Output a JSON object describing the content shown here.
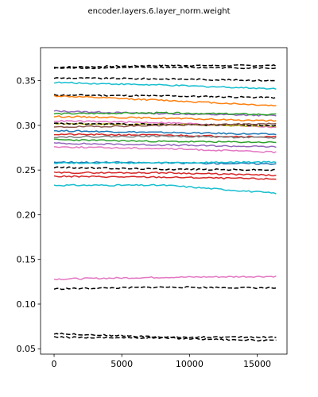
{
  "chart_data": {
    "type": "line",
    "title": "encoder.layers.6.layer_norm.weight",
    "xlabel": "",
    "ylabel": "",
    "xlim": [
      -1000,
      17200
    ],
    "ylim": [
      0.044,
      0.387
    ],
    "x_ticks": [
      0,
      5000,
      10000,
      15000
    ],
    "y_ticks": [
      0.05,
      0.1,
      0.15,
      0.2,
      0.25,
      0.3,
      0.35
    ],
    "x_tick_labels": [
      "0",
      "5000",
      "10000",
      "15000"
    ],
    "y_tick_labels": [
      "0.05",
      "0.10",
      "0.15",
      "0.20",
      "0.25",
      "0.30",
      "0.35"
    ],
    "x_range": [
      0,
      16400
    ],
    "grid": false,
    "legend": "none",
    "dashed_series_color": "#000000",
    "palette": [
      "#1f77b4",
      "#ff7f0e",
      "#2ca02c",
      "#d62728",
      "#9467bd",
      "#8c564b",
      "#e377c2",
      "#7f7f7f",
      "#bcbd22",
      "#17becf"
    ],
    "series": [
      {
        "style": "dashed",
        "values": [
          0.365,
          0.367,
          0.367
        ]
      },
      {
        "style": "dashed",
        "values": [
          0.364,
          0.365,
          0.364
        ]
      },
      {
        "style": "dashed",
        "values": [
          0.353,
          0.352,
          0.35
        ]
      },
      {
        "style": "solid",
        "color": "#17becf",
        "values": [
          0.348,
          0.345,
          0.341
        ]
      },
      {
        "style": "dashed",
        "values": [
          0.334,
          0.333,
          0.331
        ]
      },
      {
        "style": "solid",
        "color": "#ff7f0e",
        "values": [
          0.333,
          0.328,
          0.322
        ]
      },
      {
        "style": "solid",
        "color": "#9467bd",
        "values": [
          0.316,
          0.313,
          0.311
        ]
      },
      {
        "style": "solid",
        "color": "#2ca02c",
        "values": [
          0.313,
          0.314,
          0.312
        ]
      },
      {
        "style": "solid",
        "color": "#ff7f0e",
        "values": [
          0.31,
          0.308,
          0.305
        ]
      },
      {
        "style": "solid",
        "color": "#e377c2",
        "values": [
          0.305,
          0.303,
          0.298
        ]
      },
      {
        "style": "solid",
        "color": "#bcbd22",
        "values": [
          0.302,
          0.301,
          0.299
        ]
      },
      {
        "style": "dashed",
        "values": [
          0.302,
          0.301,
          0.3
        ]
      },
      {
        "style": "solid",
        "color": "#8c564b",
        "values": [
          0.298,
          0.3,
          0.302
        ]
      },
      {
        "style": "solid",
        "color": "#1f77b4",
        "values": [
          0.294,
          0.292,
          0.29
        ]
      },
      {
        "style": "solid",
        "color": "#d62728",
        "values": [
          0.29,
          0.289,
          0.287
        ]
      },
      {
        "style": "solid",
        "color": "#7f7f7f",
        "values": [
          0.287,
          0.288,
          0.286
        ]
      },
      {
        "style": "solid",
        "color": "#2ca02c",
        "values": [
          0.284,
          0.282,
          0.281
        ]
      },
      {
        "style": "solid",
        "color": "#9467bd",
        "values": [
          0.28,
          0.278,
          0.276
        ]
      },
      {
        "style": "solid",
        "color": "#e377c2",
        "values": [
          0.276,
          0.274,
          0.27
        ]
      },
      {
        "style": "solid",
        "color": "#1f77b4",
        "values": [
          0.259,
          0.258,
          0.257
        ]
      },
      {
        "style": "solid",
        "color": "#17becf",
        "values": [
          0.258,
          0.258,
          0.259
        ]
      },
      {
        "style": "dashed",
        "values": [
          0.253,
          0.251,
          0.25
        ]
      },
      {
        "style": "solid",
        "color": "#d62728",
        "values": [
          0.247,
          0.247,
          0.244
        ]
      },
      {
        "style": "solid",
        "color": "#d62728",
        "values": [
          0.243,
          0.242,
          0.24
        ]
      },
      {
        "style": "solid",
        "color": "#17becf",
        "values": [
          0.233,
          0.233,
          0.224
        ]
      },
      {
        "style": "solid",
        "color": "#e377c2",
        "values": [
          0.128,
          0.13,
          0.131
        ]
      },
      {
        "style": "dashed",
        "values": [
          0.117,
          0.119,
          0.118
        ]
      },
      {
        "style": "dashed",
        "values": [
          0.067,
          0.063,
          0.063
        ]
      },
      {
        "style": "dashed",
        "values": [
          0.063,
          0.062,
          0.059
        ]
      }
    ]
  }
}
